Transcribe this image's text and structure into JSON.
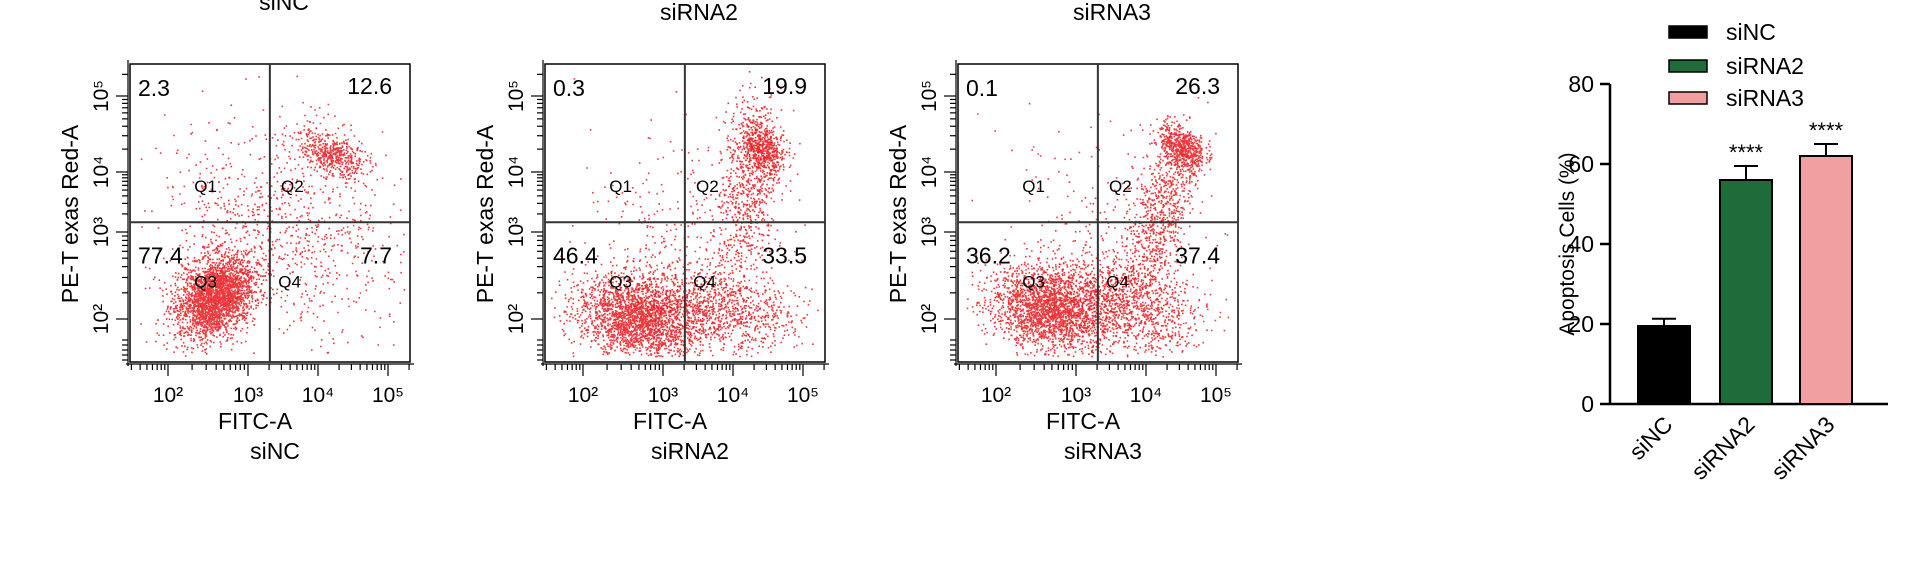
{
  "chart_data": [
    {
      "type": "scatter",
      "title_top": "siNC",
      "title_bottom": "siNC",
      "xlabel": "FITC-A",
      "ylabel": "PE-T exas Red-A",
      "x_scale": "log",
      "y_scale": "log",
      "x_ticks": [
        "10²",
        "10³",
        "10⁴",
        "10⁵"
      ],
      "y_ticks": [
        "10²",
        "10³",
        "10⁴",
        "10⁵"
      ],
      "gate_x": 1.35,
      "gate_y": 0.45,
      "quadrant_labels": [
        "Q1",
        "Q2",
        "Q3",
        "Q4"
      ],
      "quadrant_values": {
        "Q1": "2.3",
        "Q2": "12.6",
        "Q3": "77.4",
        "Q4": "7.7"
      },
      "color": "#e8161b"
    },
    {
      "type": "scatter",
      "title_top": "siRNA2",
      "title_bottom": "siRNA2",
      "xlabel": "FITC-A",
      "ylabel": "PE-T exas Red-A",
      "x_scale": "log",
      "y_scale": "log",
      "x_ticks": [
        "10²",
        "10³",
        "10⁴",
        "10⁵"
      ],
      "y_ticks": [
        "10²",
        "10³",
        "10⁴",
        "10⁵"
      ],
      "gate_x": 1.35,
      "gate_y": 0.45,
      "quadrant_labels": [
        "Q1",
        "Q2",
        "Q3",
        "Q4"
      ],
      "quadrant_values": {
        "Q1": "0.3",
        "Q2": "19.9",
        "Q3": "46.4",
        "Q4": "33.5"
      },
      "color": "#e8161b"
    },
    {
      "type": "scatter",
      "title_top": "siRNA3",
      "title_bottom": "siRNA3",
      "xlabel": "FITC-A",
      "ylabel": "PE-T exas Red-A",
      "x_scale": "log",
      "y_scale": "log",
      "x_ticks": [
        "10²",
        "10³",
        "10⁴",
        "10⁵"
      ],
      "y_ticks": [
        "10²",
        "10³",
        "10⁴",
        "10⁵"
      ],
      "gate_x": 1.35,
      "gate_y": 0.45,
      "quadrant_labels": [
        "Q1",
        "Q2",
        "Q3",
        "Q4"
      ],
      "quadrant_values": {
        "Q1": "0.1",
        "Q2": "26.3",
        "Q3": "36.2",
        "Q4": "37.4"
      },
      "color": "#e8161b"
    },
    {
      "type": "bar",
      "categories": [
        "siNC",
        "siRNA2",
        "siRNA3"
      ],
      "values": [
        19.5,
        56,
        62
      ],
      "errors": [
        1.8,
        3.5,
        3.0
      ],
      "significance": [
        "",
        "****",
        "****"
      ],
      "colors": [
        "#000000",
        "#1f6b3a",
        "#f0a0a0"
      ],
      "ylabel": "Apoptosis Cells (%)",
      "ylim": [
        0,
        80
      ],
      "yticks": [
        0,
        20,
        40,
        60,
        80
      ],
      "legend": [
        "siNC",
        "siRNA2",
        "siRNA3"
      ],
      "legend_position": "top"
    }
  ]
}
